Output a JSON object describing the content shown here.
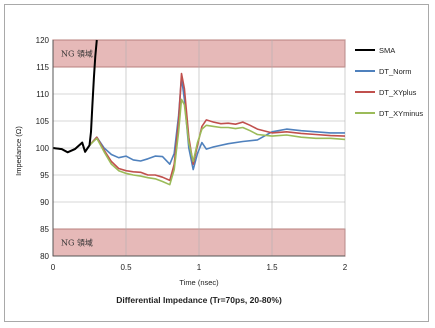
{
  "chart_data": {
    "type": "line",
    "title": "Differential Impedance (Tr=70ps, 20-80%)",
    "xlabel": "Time (nsec)",
    "ylabel": "Impedance (Ω)",
    "xlim": [
      0,
      2
    ],
    "ylim": [
      80,
      120
    ],
    "x_ticks": [
      0,
      0.5,
      1,
      1.5,
      2
    ],
    "x_tick_labels": [
      "0",
      "0.5",
      "1",
      "1.5",
      "2"
    ],
    "y_ticks": [
      80,
      85,
      90,
      95,
      100,
      105,
      110,
      115,
      120
    ],
    "y_tick_labels": [
      "80",
      "85",
      "90",
      "95",
      "100",
      "105",
      "110",
      "115",
      "120"
    ],
    "grid": true,
    "legend_position": "right",
    "ng_regions": [
      {
        "label": "NG 領域",
        "y_range": [
          115,
          120
        ]
      },
      {
        "label": "NG 領域",
        "y_range": [
          80,
          85
        ]
      }
    ],
    "series": [
      {
        "name": "SMA",
        "color": "#000000",
        "points": [
          [
            0,
            100
          ],
          [
            0.06,
            99.8
          ],
          [
            0.1,
            99.2
          ],
          [
            0.15,
            99.8
          ],
          [
            0.2,
            101
          ],
          [
            0.22,
            99.3
          ],
          [
            0.25,
            100.5
          ],
          [
            0.26,
            103
          ],
          [
            0.27,
            108
          ],
          [
            0.28,
            113
          ],
          [
            0.29,
            117
          ],
          [
            0.3,
            120
          ]
        ]
      },
      {
        "name": "DT_Norm",
        "color": "#4f81bd",
        "points": [
          [
            0,
            100
          ],
          [
            0.06,
            99.8
          ],
          [
            0.1,
            99.2
          ],
          [
            0.15,
            99.8
          ],
          [
            0.2,
            101
          ],
          [
            0.22,
            99.3
          ],
          [
            0.25,
            100.5
          ],
          [
            0.3,
            102
          ],
          [
            0.35,
            100
          ],
          [
            0.4,
            98.8
          ],
          [
            0.45,
            98.2
          ],
          [
            0.5,
            98.5
          ],
          [
            0.55,
            97.8
          ],
          [
            0.6,
            97.6
          ],
          [
            0.65,
            98
          ],
          [
            0.7,
            98.5
          ],
          [
            0.75,
            98.4
          ],
          [
            0.8,
            97
          ],
          [
            0.83,
            99
          ],
          [
            0.86,
            106
          ],
          [
            0.88,
            113
          ],
          [
            0.9,
            109
          ],
          [
            0.93,
            100
          ],
          [
            0.96,
            96
          ],
          [
            0.99,
            99
          ],
          [
            1.02,
            101
          ],
          [
            1.05,
            99.8
          ],
          [
            1.1,
            100.2
          ],
          [
            1.2,
            100.8
          ],
          [
            1.3,
            101.2
          ],
          [
            1.4,
            101.5
          ],
          [
            1.5,
            103
          ],
          [
            1.6,
            103.5
          ],
          [
            1.7,
            103.2
          ],
          [
            1.8,
            103
          ],
          [
            1.9,
            102.8
          ],
          [
            2.0,
            102.8
          ]
        ]
      },
      {
        "name": "DT_XYplus",
        "color": "#c0504d",
        "points": [
          [
            0,
            100
          ],
          [
            0.06,
            99.8
          ],
          [
            0.1,
            99.2
          ],
          [
            0.15,
            99.8
          ],
          [
            0.2,
            101
          ],
          [
            0.22,
            99.3
          ],
          [
            0.25,
            100.5
          ],
          [
            0.3,
            102
          ],
          [
            0.35,
            99.6
          ],
          [
            0.4,
            97.5
          ],
          [
            0.45,
            96.2
          ],
          [
            0.5,
            95.8
          ],
          [
            0.55,
            95.6
          ],
          [
            0.6,
            95.5
          ],
          [
            0.65,
            95
          ],
          [
            0.7,
            95
          ],
          [
            0.75,
            94.6
          ],
          [
            0.8,
            94
          ],
          [
            0.83,
            97
          ],
          [
            0.86,
            105
          ],
          [
            0.88,
            113.8
          ],
          [
            0.9,
            111
          ],
          [
            0.93,
            102
          ],
          [
            0.96,
            97
          ],
          [
            0.99,
            100.5
          ],
          [
            1.02,
            104
          ],
          [
            1.05,
            105.2
          ],
          [
            1.1,
            104.8
          ],
          [
            1.15,
            104.5
          ],
          [
            1.2,
            104.6
          ],
          [
            1.25,
            104.4
          ],
          [
            1.3,
            104.8
          ],
          [
            1.35,
            104.2
          ],
          [
            1.4,
            103.5
          ],
          [
            1.5,
            102.8
          ],
          [
            1.6,
            103
          ],
          [
            1.7,
            102.7
          ],
          [
            1.8,
            102.5
          ],
          [
            1.9,
            102.3
          ],
          [
            2.0,
            102.2
          ]
        ]
      },
      {
        "name": "DT_XYminus",
        "color": "#9bbb59",
        "points": [
          [
            0,
            100
          ],
          [
            0.06,
            99.8
          ],
          [
            0.1,
            99.2
          ],
          [
            0.15,
            99.8
          ],
          [
            0.2,
            101
          ],
          [
            0.22,
            99.3
          ],
          [
            0.25,
            100.5
          ],
          [
            0.3,
            101.8
          ],
          [
            0.35,
            99.3
          ],
          [
            0.4,
            97
          ],
          [
            0.45,
            95.8
          ],
          [
            0.5,
            95.3
          ],
          [
            0.55,
            95
          ],
          [
            0.6,
            94.8
          ],
          [
            0.65,
            94.5
          ],
          [
            0.7,
            94.3
          ],
          [
            0.75,
            93.8
          ],
          [
            0.8,
            93.2
          ],
          [
            0.83,
            96
          ],
          [
            0.86,
            103
          ],
          [
            0.88,
            109
          ],
          [
            0.9,
            108
          ],
          [
            0.93,
            101
          ],
          [
            0.96,
            97.5
          ],
          [
            0.99,
            101
          ],
          [
            1.02,
            103.5
          ],
          [
            1.05,
            104.2
          ],
          [
            1.1,
            104
          ],
          [
            1.15,
            103.8
          ],
          [
            1.2,
            103.8
          ],
          [
            1.25,
            103.6
          ],
          [
            1.3,
            103.8
          ],
          [
            1.35,
            103.2
          ],
          [
            1.4,
            102.5
          ],
          [
            1.5,
            102.2
          ],
          [
            1.6,
            102.4
          ],
          [
            1.7,
            102
          ],
          [
            1.8,
            101.8
          ],
          [
            1.9,
            101.8
          ],
          [
            2.0,
            101.6
          ]
        ]
      }
    ]
  }
}
